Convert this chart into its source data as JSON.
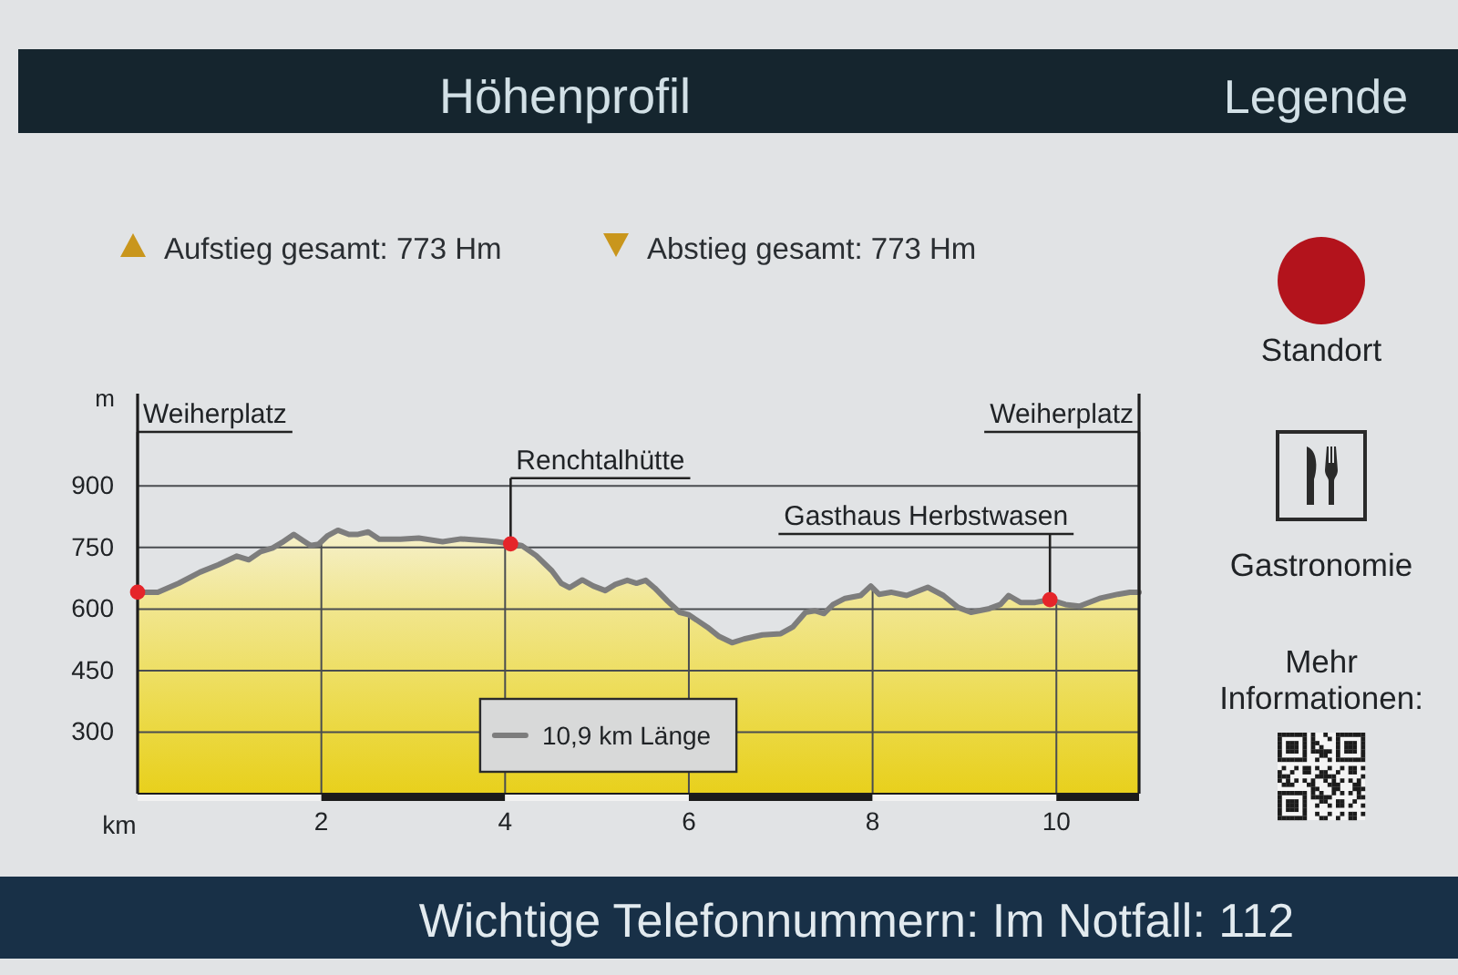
{
  "chart_data": [
    {
      "type": "area",
      "title": "Höhenprofil",
      "xlabel": "km",
      "ylabel": "m",
      "xlim": [
        0,
        10.9
      ],
      "ylim": [
        150,
        1125
      ],
      "xticks": [
        2,
        4,
        6,
        8,
        10
      ],
      "yticks": [
        300,
        450,
        600,
        750,
        900
      ],
      "grid": true,
      "legend": "bottom",
      "series": [
        {
          "name": "10,9 km Länge",
          "color": "#7d7d7d",
          "x": [
            0,
            0.22,
            0.45,
            0.68,
            0.88,
            1.08,
            1.21,
            1.34,
            1.47,
            1.57,
            1.7,
            1.8,
            1.88,
            1.97,
            2.07,
            2.18,
            2.3,
            2.4,
            2.51,
            2.63,
            2.86,
            3.06,
            3.32,
            3.52,
            3.78,
            3.91,
            4.06,
            4.18,
            4.34,
            4.51,
            4.61,
            4.7,
            4.84,
            4.96,
            5.09,
            5.2,
            5.33,
            5.43,
            5.53,
            5.63,
            5.77,
            5.9,
            6,
            6.2,
            6.33,
            6.47,
            6.6,
            6.8,
            7,
            7.13,
            7.27,
            7.37,
            7.47,
            7.57,
            7.7,
            7.87,
            7.98,
            8.07,
            8.2,
            8.37,
            8.6,
            8.77,
            8.93,
            9.07,
            9.27,
            9.39,
            9.48,
            9.61,
            9.77,
            9.93,
            10.1,
            10.25,
            10.47,
            10.67,
            10.8,
            10.9
          ],
          "values": [
            641,
            641,
            663,
            690,
            708,
            729,
            720,
            740,
            749,
            762,
            782,
            767,
            755,
            758,
            779,
            792,
            782,
            782,
            788,
            770,
            770,
            773,
            764,
            771,
            767,
            764,
            759,
            755,
            730,
            693,
            663,
            652,
            671,
            656,
            645,
            660,
            670,
            663,
            670,
            651,
            619,
            592,
            586,
            556,
            533,
            518,
            527,
            537,
            540,
            556,
            592,
            596,
            589,
            611,
            626,
            633,
            656,
            636,
            641,
            633,
            653,
            633,
            604,
            592,
            601,
            611,
            633,
            616,
            616,
            623,
            611,
            607,
            626,
            636,
            641,
            641
          ]
        },
        {
          "type": "scatter",
          "marker": "circle",
          "color": "#e5252a",
          "x": [
            0,
            4.06,
            9.93
          ],
          "values": [
            641,
            759,
            623
          ]
        }
      ],
      "annotations": [
        "Aufstieg gesamt: 773 Hm",
        "Abstieg gesamt: 773 Hm",
        {
          "text": "Weiherplatz",
          "x": 0,
          "y": 641
        },
        {
          "text": "Renchtalhütte",
          "x": 4.06,
          "y": 759
        },
        {
          "text": "Gasthaus Herbstwasen",
          "x": 9.93,
          "y": 623
        },
        {
          "text": "Weiherplatz",
          "x": 10.9,
          "y": 641
        },
        "Wichtige Telefonnummern: Im Notfall: 112"
      ]
    },
    {
      "type": "other",
      "title": "Legende",
      "annotations": [
        "Standort",
        "Gastronomie",
        "Mehr Informationen:"
      ]
    }
  ]
}
